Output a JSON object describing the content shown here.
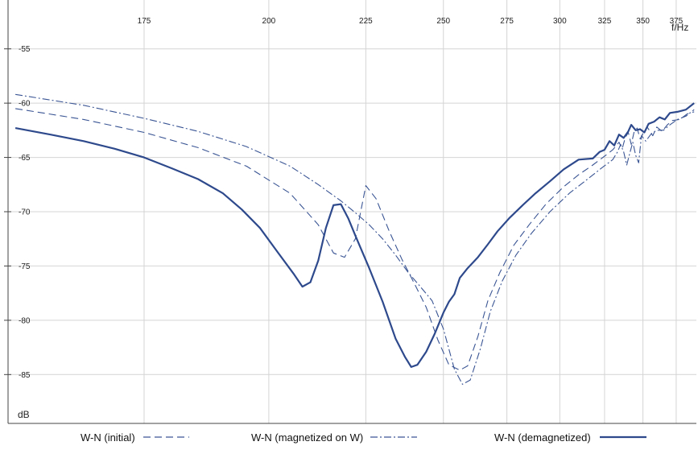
{
  "chart_data": {
    "type": "line",
    "xlabel": "f/Hz",
    "ylabel": "dB",
    "x_ticks": [
      175,
      200,
      225,
      250,
      275,
      300,
      325,
      350,
      375
    ],
    "y_ticks": [
      -55,
      -60,
      -65,
      -70,
      -75,
      -80,
      -85
    ],
    "xlim": [
      154,
      392
    ],
    "ylim": [
      -89.5,
      -50.5
    ],
    "grid": true,
    "legend_position": "bottom",
    "series": [
      {
        "name": "W-N (initial)",
        "style": "dashed",
        "color": "#3a5594",
        "points": [
          [
            155,
            -60.5
          ],
          [
            165,
            -61.5
          ],
          [
            175,
            -62.7
          ],
          [
            185,
            -64.1
          ],
          [
            195,
            -65.8
          ],
          [
            205,
            -68.3
          ],
          [
            212,
            -71.2
          ],
          [
            216,
            -73.8
          ],
          [
            219,
            -74.2
          ],
          [
            222,
            -72.5
          ],
          [
            225,
            -67.6
          ],
          [
            228,
            -68.8
          ],
          [
            232,
            -71.8
          ],
          [
            236,
            -74.4
          ],
          [
            240,
            -76.6
          ],
          [
            244,
            -78.8
          ],
          [
            248,
            -81.8
          ],
          [
            252,
            -84.1
          ],
          [
            256,
            -84.6
          ],
          [
            259,
            -84.2
          ],
          [
            263,
            -81.5
          ],
          [
            267,
            -78.2
          ],
          [
            272,
            -75.6
          ],
          [
            278,
            -73.1
          ],
          [
            285,
            -71.2
          ],
          [
            293,
            -69.3
          ],
          [
            302,
            -67.7
          ],
          [
            310,
            -66.6
          ],
          [
            318,
            -65.7
          ],
          [
            324,
            -65.0
          ],
          [
            330,
            -64.3
          ],
          [
            334,
            -63.6
          ],
          [
            336,
            -64.2
          ],
          [
            338,
            -63.2
          ],
          [
            340,
            -62.7
          ],
          [
            342,
            -63.8
          ],
          [
            344,
            -62.6
          ],
          [
            346,
            -62.3
          ],
          [
            348,
            -63.3
          ],
          [
            350,
            -62.8
          ],
          [
            353,
            -62.2
          ],
          [
            357,
            -63.0
          ],
          [
            360,
            -62.2
          ],
          [
            364,
            -62.6
          ],
          [
            368,
            -62.0
          ],
          [
            372,
            -61.6
          ],
          [
            378,
            -61.5
          ],
          [
            384,
            -61.0
          ],
          [
            390,
            -60.8
          ]
        ]
      },
      {
        "name": "W-N (magnetized on W)",
        "style": "dashdot",
        "color": "#3a5594",
        "points": [
          [
            155,
            -59.2
          ],
          [
            165,
            -60.2
          ],
          [
            175,
            -61.4
          ],
          [
            185,
            -62.6
          ],
          [
            195,
            -64.0
          ],
          [
            205,
            -65.8
          ],
          [
            212,
            -67.5
          ],
          [
            218,
            -69.0
          ],
          [
            222,
            -70.1
          ],
          [
            226,
            -71.2
          ],
          [
            230,
            -72.5
          ],
          [
            234,
            -74.0
          ],
          [
            238,
            -75.6
          ],
          [
            242,
            -76.9
          ],
          [
            246,
            -78.2
          ],
          [
            250,
            -80.8
          ],
          [
            254,
            -84.5
          ],
          [
            257,
            -85.9
          ],
          [
            260,
            -85.5
          ],
          [
            264,
            -82.6
          ],
          [
            268,
            -79.2
          ],
          [
            273,
            -76.4
          ],
          [
            279,
            -74.0
          ],
          [
            286,
            -72.0
          ],
          [
            295,
            -70.0
          ],
          [
            305,
            -68.3
          ],
          [
            315,
            -67.0
          ],
          [
            323,
            -66.0
          ],
          [
            330,
            -65.2
          ],
          [
            333,
            -64.5
          ],
          [
            335,
            -63.8
          ],
          [
            337,
            -64.5
          ],
          [
            339,
            -65.7
          ],
          [
            341,
            -64.6
          ],
          [
            343,
            -63.6
          ],
          [
            345,
            -64.8
          ],
          [
            347,
            -65.5
          ],
          [
            349,
            -63.0
          ],
          [
            352,
            -63.5
          ],
          [
            356,
            -62.8
          ],
          [
            360,
            -62.5
          ],
          [
            365,
            -62.5
          ],
          [
            370,
            -62.0
          ],
          [
            376,
            -61.5
          ],
          [
            383,
            -61.2
          ],
          [
            390,
            -60.6
          ]
        ]
      },
      {
        "name": "W-N (demagnetized)",
        "style": "solid",
        "color": "#2e4a8c",
        "points": [
          [
            155,
            -62.3
          ],
          [
            160,
            -62.9
          ],
          [
            165,
            -63.5
          ],
          [
            170,
            -64.2
          ],
          [
            175,
            -65.0
          ],
          [
            180,
            -66.0
          ],
          [
            185,
            -67.0
          ],
          [
            190,
            -68.3
          ],
          [
            194,
            -69.8
          ],
          [
            198,
            -71.5
          ],
          [
            202,
            -73.7
          ],
          [
            206,
            -75.8
          ],
          [
            208,
            -76.9
          ],
          [
            210,
            -76.5
          ],
          [
            212,
            -74.5
          ],
          [
            214,
            -71.5
          ],
          [
            216,
            -69.4
          ],
          [
            218,
            -69.3
          ],
          [
            220,
            -70.6
          ],
          [
            222,
            -72.2
          ],
          [
            226,
            -75.2
          ],
          [
            230,
            -78.3
          ],
          [
            234,
            -81.7
          ],
          [
            237,
            -83.4
          ],
          [
            239,
            -84.3
          ],
          [
            241,
            -84.1
          ],
          [
            244,
            -82.9
          ],
          [
            247,
            -81.2
          ],
          [
            250,
            -79.3
          ],
          [
            252,
            -78.3
          ],
          [
            254,
            -77.6
          ],
          [
            256,
            -76.1
          ],
          [
            259,
            -75.2
          ],
          [
            263,
            -74.2
          ],
          [
            267,
            -73.0
          ],
          [
            271,
            -71.8
          ],
          [
            276,
            -70.6
          ],
          [
            282,
            -69.4
          ],
          [
            288,
            -68.3
          ],
          [
            295,
            -67.2
          ],
          [
            302,
            -66.1
          ],
          [
            310,
            -65.2
          ],
          [
            318,
            -65.1
          ],
          [
            322,
            -64.5
          ],
          [
            325,
            -64.3
          ],
          [
            328,
            -63.5
          ],
          [
            331,
            -63.9
          ],
          [
            334,
            -62.9
          ],
          [
            337,
            -63.2
          ],
          [
            340,
            -62.6
          ],
          [
            342,
            -62.0
          ],
          [
            345,
            -62.5
          ],
          [
            348,
            -62.4
          ],
          [
            351,
            -62.7
          ],
          [
            354,
            -61.9
          ],
          [
            358,
            -61.7
          ],
          [
            362,
            -61.3
          ],
          [
            366,
            -61.5
          ],
          [
            370,
            -60.9
          ],
          [
            376,
            -60.8
          ],
          [
            383,
            -60.6
          ],
          [
            390,
            -60.0
          ]
        ]
      }
    ]
  }
}
